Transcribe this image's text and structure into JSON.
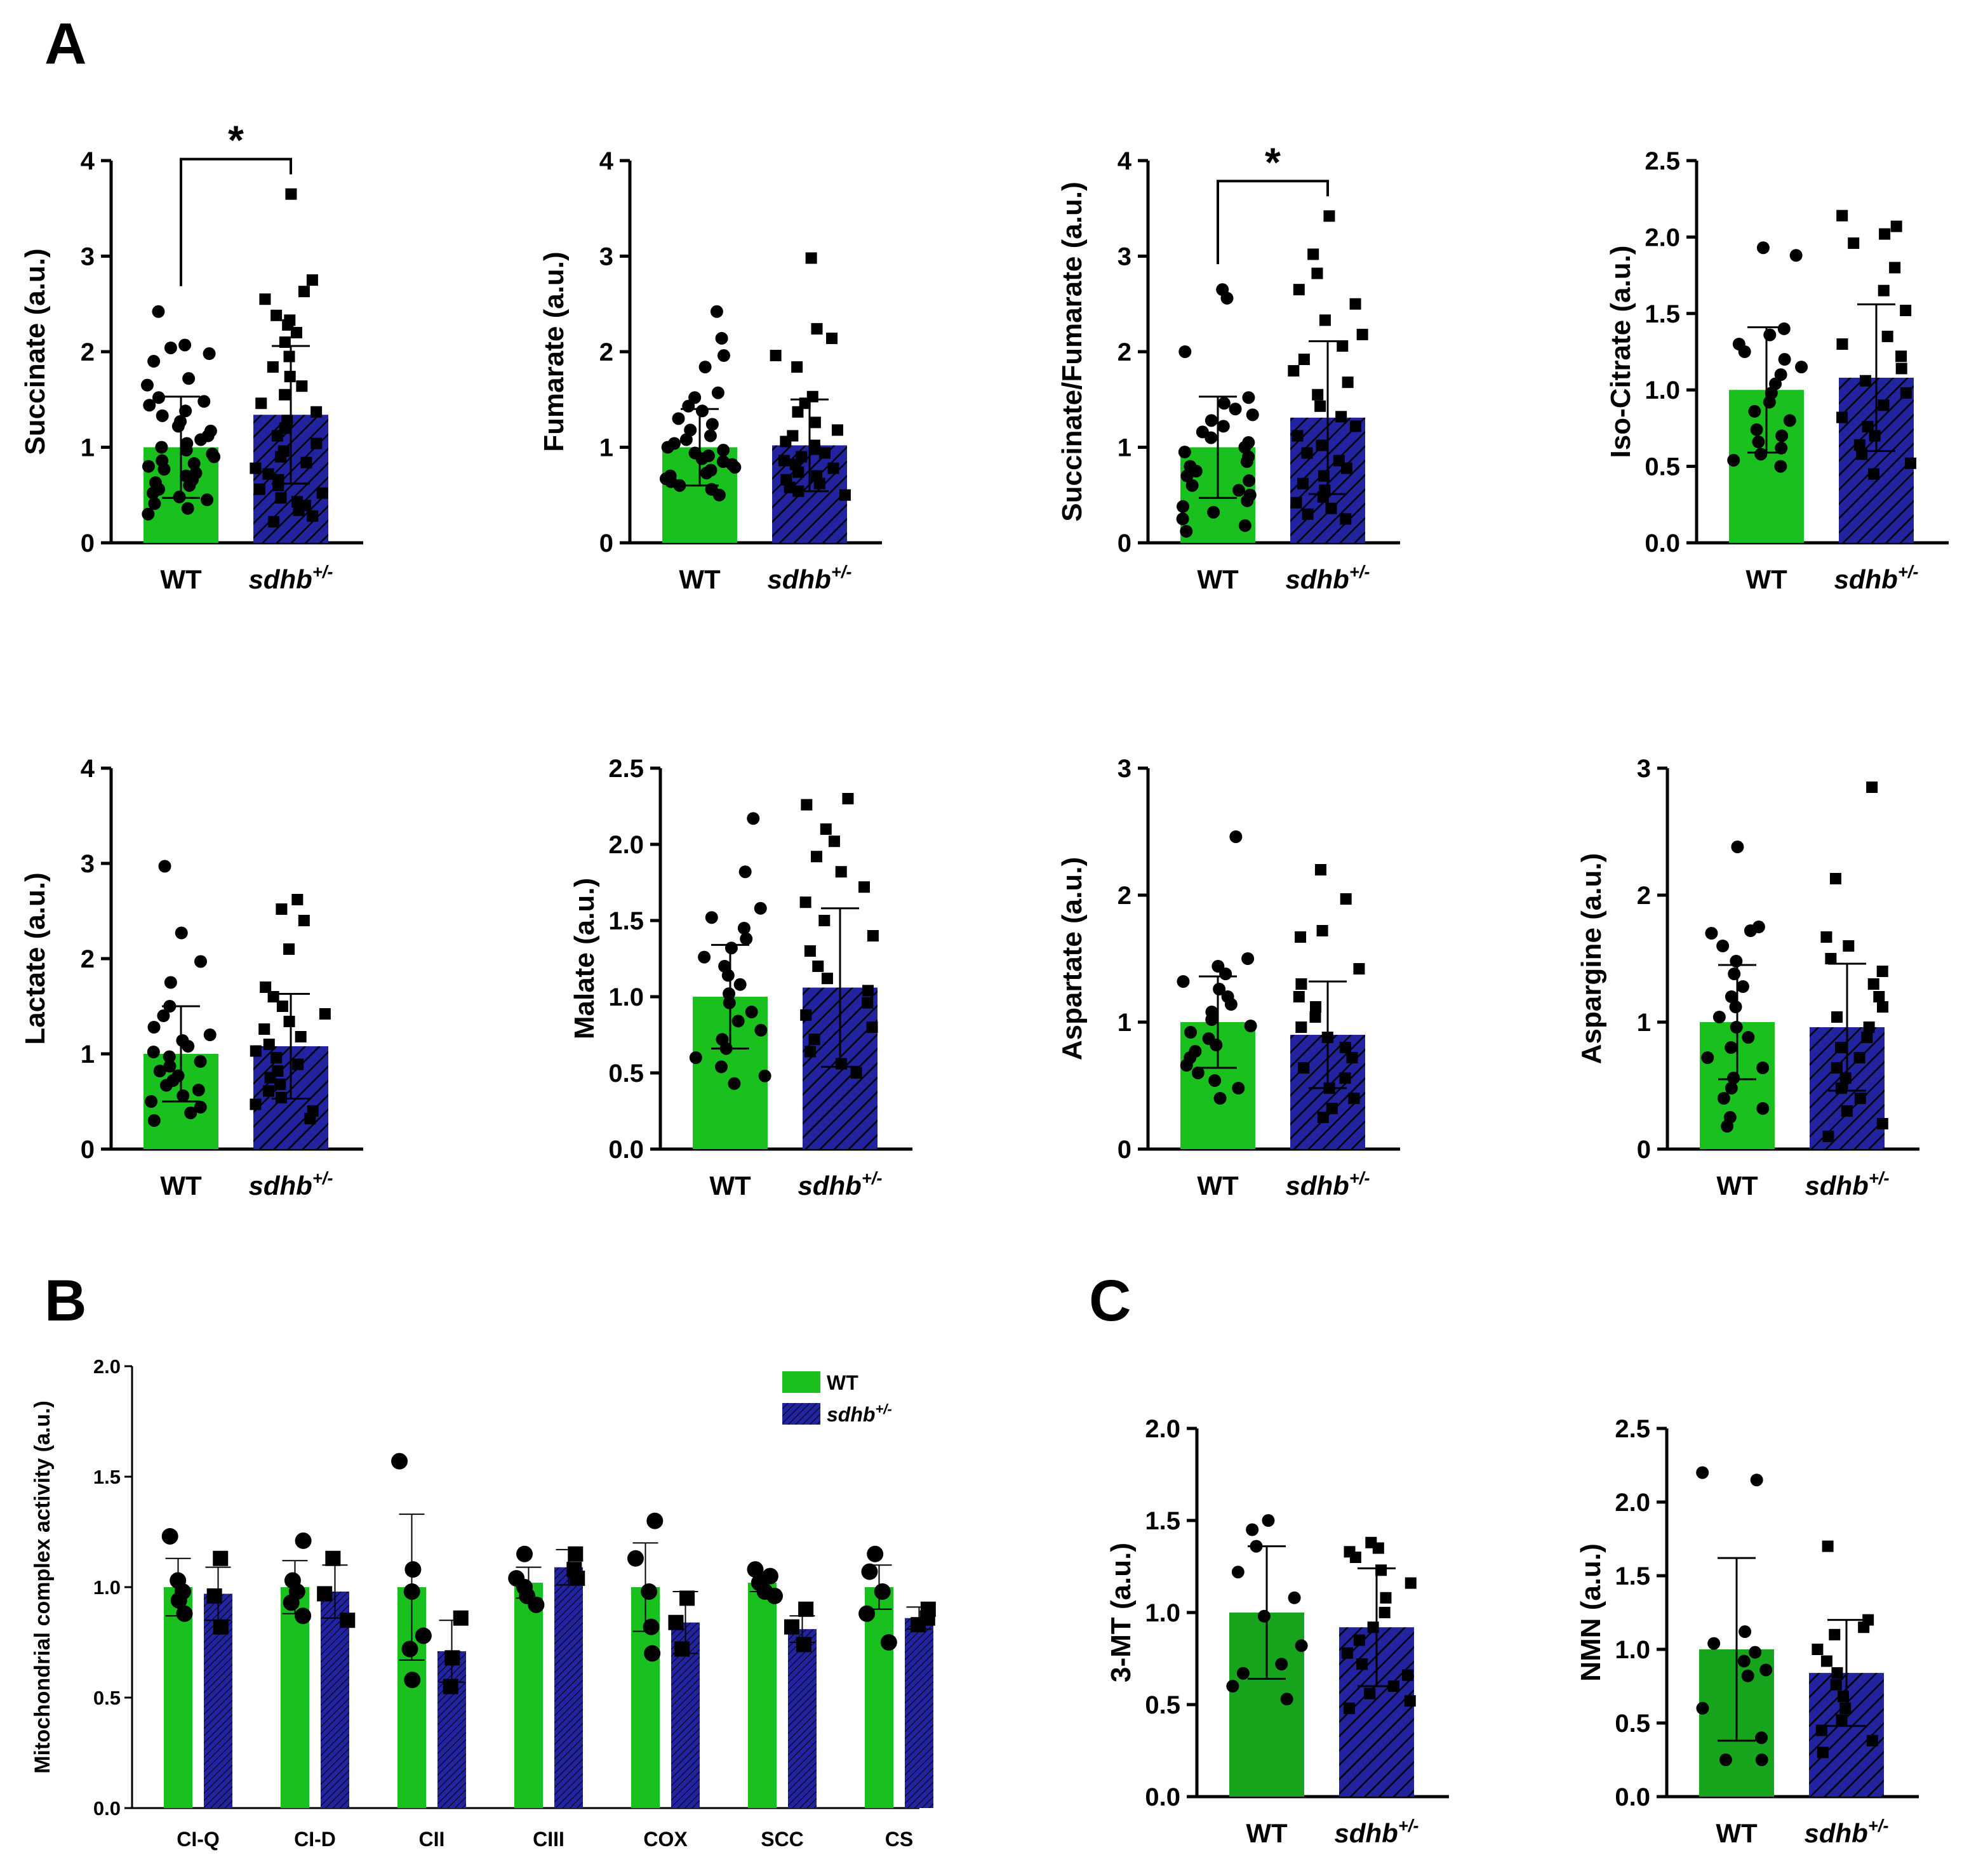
{
  "panel_letters": [
    "A",
    "B",
    "C"
  ],
  "colors": {
    "wt": "#19c01e",
    "wt_dark": "#17a51d",
    "sdhb": "#22239e",
    "hatch": "#000000"
  },
  "chart_data": [
    {
      "type": "bar",
      "panel": "A",
      "ylabel": "Succinate (a.u.)",
      "ylim": [
        0,
        4
      ],
      "yticks": [
        "0",
        "1",
        "2",
        "3",
        "4"
      ],
      "categories": [
        "WT",
        "sdhb"
      ],
      "category_superscript": [
        "",
        "+/-"
      ],
      "values": [
        1.0,
        1.34
      ],
      "errors": [
        0.53,
        0.72
      ],
      "points": [
        [
          2.42,
          2.07,
          2.04,
          1.98,
          1.9,
          1.72,
          1.65,
          1.52,
          1.48,
          1.44,
          1.38,
          1.33,
          1.27,
          1.22,
          1.17,
          1.12,
          1.08,
          1.04,
          1.0,
          0.97,
          0.93,
          0.9,
          0.86,
          0.83,
          0.8,
          0.77,
          0.73,
          0.7,
          0.66,
          0.63,
          0.6,
          0.56,
          0.52,
          0.48,
          0.45,
          0.41,
          0.36,
          0.3
        ],
        [
          3.65,
          2.75,
          2.63,
          2.55,
          2.38,
          2.33,
          2.28,
          2.2,
          2.1,
          1.95,
          1.84,
          1.74,
          1.64,
          1.55,
          1.46,
          1.37,
          1.28,
          1.2,
          1.12,
          1.04,
          0.96,
          0.9,
          0.84,
          0.78,
          0.72,
          0.66,
          0.6,
          0.56,
          0.52,
          0.47,
          0.43,
          0.39,
          0.34,
          0.28,
          0.22
        ]
      ],
      "significance": "*"
    },
    {
      "type": "bar",
      "panel": "A",
      "ylabel": "Fumarate (a.u.)",
      "ylim": [
        0,
        4
      ],
      "yticks": [
        "0",
        "1",
        "2",
        "3",
        "4"
      ],
      "categories": [
        "WT",
        "sdhb"
      ],
      "category_superscript": [
        "",
        "+/-"
      ],
      "values": [
        1.0,
        1.02
      ],
      "errors": [
        0.4,
        0.48
      ],
      "points": [
        [
          2.42,
          2.14,
          1.96,
          1.84,
          1.57,
          1.52,
          1.43,
          1.38,
          1.3,
          1.24,
          1.18,
          1.12,
          1.08,
          1.04,
          1.0,
          0.97,
          0.94,
          0.91,
          0.88,
          0.85,
          0.82,
          0.79,
          0.76,
          0.73,
          0.7,
          0.67,
          0.64,
          0.6,
          0.56,
          0.5
        ],
        [
          2.98,
          2.24,
          2.14,
          1.96,
          1.84,
          1.53,
          1.46,
          1.37,
          1.26,
          1.18,
          1.12,
          1.06,
          1.02,
          0.98,
          0.94,
          0.9,
          0.86,
          0.82,
          0.78,
          0.74,
          0.7,
          0.66,
          0.62,
          0.58,
          0.54,
          0.5
        ]
      ],
      "significance": ""
    },
    {
      "type": "bar",
      "panel": "A",
      "ylabel": "Succinate/Fumarate (a.u.)",
      "ylim": [
        0,
        4
      ],
      "yticks": [
        "0",
        "1",
        "2",
        "3",
        "4"
      ],
      "categories": [
        "WT",
        "sdhb"
      ],
      "category_superscript": [
        "",
        "+/-"
      ],
      "values": [
        1.0,
        1.31
      ],
      "errors": [
        0.53,
        0.8
      ],
      "points": [
        [
          2.65,
          2.56,
          2.0,
          1.52,
          1.46,
          1.4,
          1.34,
          1.28,
          1.22,
          1.16,
          1.1,
          1.05,
          1.0,
          0.95,
          0.9,
          0.85,
          0.8,
          0.75,
          0.7,
          0.65,
          0.6,
          0.55,
          0.5,
          0.44,
          0.38,
          0.32,
          0.25,
          0.18,
          0.12
        ],
        [
          3.42,
          3.02,
          2.82,
          2.65,
          2.5,
          2.33,
          2.18,
          2.06,
          1.92,
          1.8,
          1.68,
          1.55,
          1.43,
          1.32,
          1.22,
          1.12,
          1.02,
          0.94,
          0.86,
          0.78,
          0.7,
          0.62,
          0.55,
          0.48,
          0.42,
          0.36,
          0.3,
          0.25
        ]
      ],
      "significance": "*"
    },
    {
      "type": "bar",
      "panel": "A",
      "ylabel": "Iso-Citrate (a.u.)",
      "ylim": [
        0,
        2.5
      ],
      "yticks": [
        "0.0",
        "0.5",
        "1.0",
        "1.5",
        "2.0",
        "2.5"
      ],
      "categories": [
        "WT",
        "sdhb"
      ],
      "category_superscript": [
        "",
        "+/-"
      ],
      "values": [
        1.0,
        1.08
      ],
      "errors": [
        0.41,
        0.48
      ],
      "points": [
        [
          1.93,
          1.88,
          1.4,
          1.36,
          1.3,
          1.25,
          1.2,
          1.15,
          1.1,
          1.04,
          0.98,
          0.92,
          0.86,
          0.8,
          0.74,
          0.7,
          0.66,
          0.62,
          0.58,
          0.54,
          0.5
        ],
        [
          2.14,
          2.07,
          2.02,
          1.96,
          1.8,
          1.65,
          1.52,
          1.35,
          1.3,
          1.22,
          1.14,
          1.06,
          0.98,
          0.9,
          0.82,
          0.76,
          0.7,
          0.64,
          0.58,
          0.52,
          0.45
        ]
      ],
      "significance": ""
    },
    {
      "type": "bar",
      "panel": "A",
      "ylabel": "Lactate (a.u.)",
      "ylim": [
        0,
        4
      ],
      "yticks": [
        "0",
        "1",
        "2",
        "3",
        "4"
      ],
      "categories": [
        "WT",
        "sdhb"
      ],
      "category_superscript": [
        "",
        "+/-"
      ],
      "values": [
        1.0,
        1.08
      ],
      "errors": [
        0.5,
        0.55
      ],
      "points": [
        [
          2.97,
          2.27,
          1.97,
          1.75,
          1.5,
          1.4,
          1.28,
          1.2,
          1.14,
          1.08,
          1.02,
          0.97,
          0.92,
          0.87,
          0.82,
          0.77,
          0.72,
          0.67,
          0.62,
          0.56,
          0.5,
          0.44,
          0.38,
          0.3
        ],
        [
          2.62,
          2.52,
          2.4,
          2.1,
          1.7,
          1.6,
          1.5,
          1.42,
          1.34,
          1.26,
          1.18,
          1.1,
          1.03,
          0.96,
          0.89,
          0.82,
          0.75,
          0.68,
          0.61,
          0.54,
          0.47,
          0.4,
          0.32
        ]
      ],
      "significance": ""
    },
    {
      "type": "bar",
      "panel": "A",
      "ylabel": "Malate (a.u.)",
      "ylim": [
        0,
        2.5
      ],
      "yticks": [
        "0.0",
        "0.5",
        "1.0",
        "1.5",
        "2.0",
        "2.5"
      ],
      "categories": [
        "WT",
        "sdhb"
      ],
      "category_superscript": [
        "",
        "+/-"
      ],
      "values": [
        1.0,
        1.06
      ],
      "errors": [
        0.34,
        0.52
      ],
      "points": [
        [
          2.17,
          1.82,
          1.58,
          1.52,
          1.45,
          1.38,
          1.32,
          1.26,
          1.2,
          1.14,
          1.08,
          1.02,
          0.96,
          0.9,
          0.84,
          0.78,
          0.72,
          0.66,
          0.6,
          0.54,
          0.48,
          0.43
        ],
        [
          2.3,
          2.26,
          2.1,
          2.02,
          1.92,
          1.82,
          1.72,
          1.62,
          1.5,
          1.4,
          1.3,
          1.2,
          1.12,
          1.04,
          0.96,
          0.88,
          0.8,
          0.72,
          0.64,
          0.56,
          0.5
        ]
      ],
      "significance": ""
    },
    {
      "type": "bar",
      "panel": "A",
      "ylabel": "Aspartate (a.u.)",
      "ylim": [
        0,
        3
      ],
      "yticks": [
        "0",
        "1",
        "2",
        "3"
      ],
      "categories": [
        "WT",
        "sdhb"
      ],
      "category_superscript": [
        "",
        "+/-"
      ],
      "values": [
        1.0,
        0.9
      ],
      "errors": [
        0.36,
        0.42
      ],
      "points": [
        [
          2.46,
          1.5,
          1.44,
          1.38,
          1.32,
          1.26,
          1.2,
          1.14,
          1.08,
          1.02,
          0.97,
          0.92,
          0.87,
          0.82,
          0.77,
          0.72,
          0.66,
          0.6,
          0.54,
          0.48,
          0.4
        ],
        [
          2.2,
          1.97,
          1.72,
          1.67,
          1.42,
          1.3,
          1.2,
          1.12,
          1.04,
          0.96,
          0.88,
          0.8,
          0.72,
          0.64,
          0.56,
          0.48,
          0.4,
          0.32,
          0.25
        ]
      ],
      "significance": ""
    },
    {
      "type": "bar",
      "panel": "A",
      "ylabel": "Aspargine (a.u.)",
      "ylim": [
        0,
        3
      ],
      "yticks": [
        "0",
        "1",
        "2",
        "3"
      ],
      "categories": [
        "WT",
        "sdhb"
      ],
      "category_superscript": [
        "",
        "+/-"
      ],
      "values": [
        1.0,
        0.96
      ],
      "errors": [
        0.45,
        0.5
      ],
      "points": [
        [
          2.38,
          1.75,
          1.72,
          1.7,
          1.6,
          1.48,
          1.38,
          1.28,
          1.2,
          1.12,
          1.04,
          0.96,
          0.88,
          0.8,
          0.72,
          0.64,
          0.56,
          0.48,
          0.4,
          0.32,
          0.25,
          0.18
        ],
        [
          2.85,
          2.13,
          1.67,
          1.6,
          1.5,
          1.4,
          1.3,
          1.2,
          1.12,
          1.04,
          0.96,
          0.88,
          0.8,
          0.72,
          0.64,
          0.56,
          0.48,
          0.4,
          0.3,
          0.2,
          0.1
        ]
      ],
      "significance": ""
    },
    {
      "type": "bar",
      "panel": "B",
      "ylabel": "Mitochondrial complex activity (a.u.)",
      "ylim": [
        0,
        2.0
      ],
      "yticks": [
        "0.0",
        "0.5",
        "1.0",
        "1.5",
        "2.0"
      ],
      "categories": [
        "CI-Q",
        "CI-D",
        "CII",
        "CIII",
        "COX",
        "SCC",
        "CS"
      ],
      "legend": {
        "position": "top-right",
        "entries": [
          "WT",
          "sdhb"
        ],
        "entry_superscript": [
          "",
          "+/-"
        ]
      },
      "series": [
        {
          "values": [
            1.0,
            1.0,
            1.0,
            1.02,
            1.0,
            1.02,
            1.0
          ],
          "errors": [
            0.13,
            0.12,
            0.33,
            0.07,
            0.2,
            0.04,
            0.1
          ],
          "points": [
            [
              1.23,
              1.03,
              0.98,
              0.94,
              0.88
            ],
            [
              1.21,
              1.03,
              0.98,
              0.93,
              0.87
            ],
            [
              1.57,
              1.08,
              0.98,
              0.78,
              0.72,
              0.58
            ],
            [
              1.15,
              1.04,
              1.0,
              0.96,
              0.92
            ],
            [
              1.3,
              1.13,
              0.98,
              0.82,
              0.7
            ],
            [
              1.08,
              1.05,
              1.02,
              0.98,
              0.96
            ],
            [
              1.15,
              1.07,
              0.98,
              0.88,
              0.75
            ]
          ]
        },
        {
          "values": [
            0.97,
            0.98,
            0.71,
            1.09,
            0.84,
            0.81,
            0.86
          ],
          "errors": [
            0.12,
            0.12,
            0.14,
            0.08,
            0.14,
            0.06,
            0.05
          ],
          "points": [
            [
              1.13,
              0.96,
              0.82
            ],
            [
              1.13,
              0.97,
              0.85
            ],
            [
              0.86,
              0.68,
              0.55
            ],
            [
              1.15,
              1.08,
              1.04
            ],
            [
              0.95,
              0.84,
              0.72
            ],
            [
              0.9,
              0.82,
              0.74
            ],
            [
              0.9,
              0.86,
              0.83
            ]
          ]
        }
      ]
    },
    {
      "type": "bar",
      "panel": "C",
      "ylabel": "3-MT (a.u.)",
      "ylim": [
        0,
        2.0
      ],
      "yticks": [
        "0.0",
        "0.5",
        "1.0",
        "1.5",
        "2.0"
      ],
      "categories": [
        "WT",
        "sdhb"
      ],
      "category_superscript": [
        "",
        "+/-"
      ],
      "values": [
        1.0,
        0.92
      ],
      "errors": [
        0.36,
        0.32
      ],
      "points": [
        [
          1.5,
          1.45,
          1.36,
          1.22,
          1.08,
          0.98,
          0.82,
          0.72,
          0.67,
          0.6,
          0.53
        ],
        [
          1.38,
          1.35,
          1.33,
          1.3,
          1.23,
          1.16,
          1.08,
          1.0,
          0.92,
          0.85,
          0.78,
          0.72,
          0.66,
          0.6,
          0.56,
          0.52,
          0.48
        ]
      ],
      "significance": ""
    },
    {
      "type": "bar",
      "panel": "C",
      "ylabel": "NMN (a.u.)",
      "ylim": [
        0,
        2.5
      ],
      "yticks": [
        "0.0",
        "0.5",
        "1.0",
        "1.5",
        "2.0",
        "2.5"
      ],
      "categories": [
        "WT",
        "sdhb"
      ],
      "category_superscript": [
        "",
        "+/-"
      ],
      "values": [
        1.0,
        0.84
      ],
      "errors": [
        0.62,
        0.36
      ],
      "points": [
        [
          2.2,
          2.15,
          1.12,
          1.04,
          0.98,
          0.92,
          0.86,
          0.82,
          0.6,
          0.4,
          0.25,
          0.25
        ],
        [
          1.7,
          1.2,
          1.15,
          1.1,
          1.0,
          0.92,
          0.84,
          0.76,
          0.68,
          0.6,
          0.52,
          0.45,
          0.38,
          0.3
        ]
      ],
      "significance": ""
    }
  ]
}
